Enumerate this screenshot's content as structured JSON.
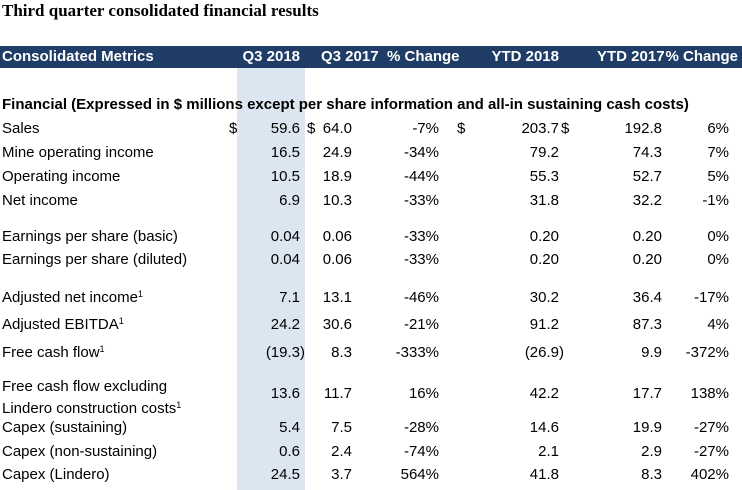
{
  "title": "Third quarter consolidated financial results",
  "header": {
    "metrics": "Consolidated Metrics",
    "q3_2018": "Q3 2018",
    "q3_2017": "Q3 2017",
    "change_q": "% Change",
    "ytd_2018": "YTD 2018",
    "ytd_2017": "YTD 2017",
    "change_ytd": "% Change"
  },
  "section": "Financial (Expressed in $ millions except per share information and all-in sustaining cash costs)",
  "currency": "$",
  "rows": [
    {
      "label": "Sales",
      "q3_2018": "59.6",
      "q3_2017": "64.0",
      "chg_q": "-7%",
      "ytd_2018": "203.7",
      "ytd_2017": "192.8",
      "chg_ytd": "6%"
    },
    {
      "label": "Mine operating income",
      "q3_2018": "16.5",
      "q3_2017": "24.9",
      "chg_q": "-34%",
      "ytd_2018": "79.2",
      "ytd_2017": "74.3",
      "chg_ytd": "7%"
    },
    {
      "label": "Operating income",
      "q3_2018": "10.5",
      "q3_2017": "18.9",
      "chg_q": "-44%",
      "ytd_2018": "55.3",
      "ytd_2017": "52.7",
      "chg_ytd": "5%"
    },
    {
      "label": "Net income",
      "q3_2018": "6.9",
      "q3_2017": "10.3",
      "chg_q": "-33%",
      "ytd_2018": "31.8",
      "ytd_2017": "32.2",
      "chg_ytd": "-1%"
    },
    {
      "label": "Earnings per share (basic)",
      "q3_2018": "0.04",
      "q3_2017": "0.06",
      "chg_q": "-33%",
      "ytd_2018": "0.20",
      "ytd_2017": "0.20",
      "chg_ytd": "0%"
    },
    {
      "label": "Earnings per share (diluted)",
      "q3_2018": "0.04",
      "q3_2017": "0.06",
      "chg_q": "-33%",
      "ytd_2018": "0.20",
      "ytd_2017": "0.20",
      "chg_ytd": "0%"
    },
    {
      "label": "Adjusted net income",
      "note": "1",
      "q3_2018": "7.1",
      "q3_2017": "13.1",
      "chg_q": "-46%",
      "ytd_2018": "30.2",
      "ytd_2017": "36.4",
      "chg_ytd": "-17%"
    },
    {
      "label": "Adjusted EBITDA",
      "note": "1",
      "q3_2018": "24.2",
      "q3_2017": "30.6",
      "chg_q": "-21%",
      "ytd_2018": "91.2",
      "ytd_2017": "87.3",
      "chg_ytd": "4%"
    },
    {
      "label": "Free cash flow",
      "note": "1",
      "q3_2018": "(19.3)",
      "q3_2017": "8.3",
      "chg_q": "-333%",
      "ytd_2018": "(26.9)",
      "ytd_2017": "9.9",
      "chg_ytd": "-372%"
    },
    {
      "label": "Free cash flow excluding",
      "label2": "Lindero construction costs",
      "note": "1",
      "q3_2018": "13.6",
      "q3_2017": "11.7",
      "chg_q": "16%",
      "ytd_2018": "42.2",
      "ytd_2017": "17.7",
      "chg_ytd": "138%"
    },
    {
      "label": "Capex (sustaining)",
      "q3_2018": "5.4",
      "q3_2017": "7.5",
      "chg_q": "-28%",
      "ytd_2018": "14.6",
      "ytd_2017": "19.9",
      "chg_ytd": "-27%"
    },
    {
      "label": "Capex (non-sustaining)",
      "q3_2018": "0.6",
      "q3_2017": "2.4",
      "chg_q": "-74%",
      "ytd_2018": "2.1",
      "ytd_2017": "2.9",
      "chg_ytd": "-27%"
    },
    {
      "label": "Capex (Lindero)",
      "q3_2018": "24.5",
      "q3_2017": "3.7",
      "chg_q": "564%",
      "ytd_2018": "41.8",
      "ytd_2017": "8.3",
      "chg_ytd": "402%"
    }
  ]
}
